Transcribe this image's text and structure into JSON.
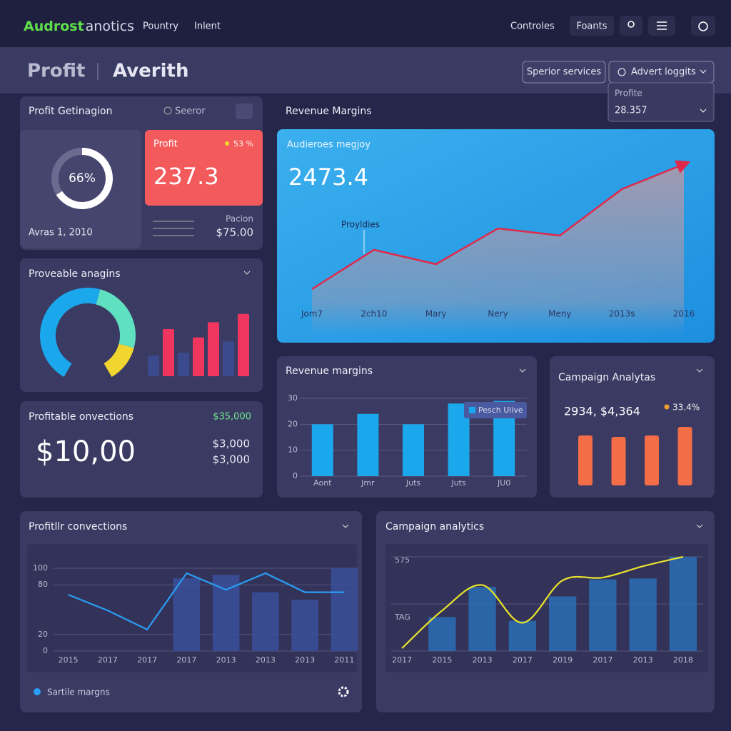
{
  "header": {
    "brand": "Audrost",
    "brand_suffix": "anotics",
    "nav": [
      "Pountry",
      "Inlent"
    ],
    "actions": [
      "Controles",
      "Foants"
    ]
  },
  "titlebar": {
    "title": "Profit",
    "subtitle": "Averith",
    "buttons": [
      "Sperior services",
      "Advert loggits"
    ],
    "dropdown": {
      "label": "Profite",
      "value": "28.357"
    }
  },
  "profit_panel": {
    "title": "Profit Getinagion",
    "search": "Seeror",
    "date": "Avras 1, 2010",
    "card": {
      "title": "Profit",
      "change": "53 %",
      "value": "237.3"
    },
    "footer": {
      "label": "Pacion",
      "value": "$75.00"
    }
  },
  "conversions_panel": {
    "title": "Profitable onvections",
    "badge": "$35,000",
    "value": "$10,00",
    "lines": [
      "$3,000",
      "$3,000"
    ]
  },
  "chart_data": [
    {
      "type": "donut",
      "values": [
        66
      ],
      "value_labels": [
        "66%"
      ],
      "color": "#ffffff"
    },
    {
      "type": "area",
      "title": "Revenue Margins",
      "subtitle": "Audieroes megjoy",
      "headline": "2473.4",
      "annotation": "Proyldies",
      "categories": [
        "Jom7",
        "2ch10",
        "Mary",
        "Nery",
        "Meny",
        "2013s",
        "2016"
      ],
      "values": [
        26,
        48,
        40,
        60,
        56,
        82,
        96
      ],
      "ylim": [
        0,
        100
      ],
      "color": "#e0294a"
    },
    {
      "type": "gauge",
      "title": "Proveable anagins",
      "values": [
        55,
        30,
        15
      ],
      "colors": [
        "#1aa7ec",
        "#5fe0c0",
        "#f2d630"
      ]
    },
    {
      "type": "bar",
      "values": [
        30,
        68,
        34,
        56,
        78,
        50,
        90
      ],
      "colors": [
        "#3b4a8c",
        "#f0365e",
        "#3b4a8c",
        "#f0365e",
        "#f0365e",
        "#3b4a8c",
        "#f0365e"
      ],
      "ylim": [
        0,
        100
      ]
    },
    {
      "type": "bar",
      "title": "Revenue margins",
      "categories": [
        "Aont",
        "Jmr",
        "Juts",
        "Juts",
        "JU0"
      ],
      "series": [
        {
          "name": "Pesch Ulive",
          "color": "#1aa7ec",
          "values": [
            20,
            24,
            20,
            28,
            29
          ]
        }
      ],
      "ylim": [
        0,
        30
      ],
      "yticks": [
        0,
        10,
        20,
        30
      ],
      "grid": true,
      "legend": "top-right"
    },
    {
      "type": "bar",
      "title": "Campaign Analytas",
      "headline": "2934, $4,364",
      "series": [
        {
          "name": "33.4%",
          "color": "#f36d47",
          "values": [
            70,
            68,
            70,
            82
          ]
        }
      ],
      "ylim": [
        0,
        100
      ],
      "legend": "top-right"
    },
    {
      "type": "combo",
      "title": "Profitllr convections",
      "categories": [
        "2015",
        "2017",
        "2017",
        "2017",
        "2013",
        "2013",
        "2013",
        "2011"
      ],
      "series": [
        {
          "name": "Sartile margns",
          "kind": "line",
          "color": "#2a9df4",
          "values": [
            68,
            49,
            26,
            94,
            74,
            94,
            71,
            71
          ]
        },
        {
          "kind": "bar",
          "color": "#3a4f9a",
          "values": [
            null,
            null,
            null,
            88,
            92,
            71,
            62,
            100
          ]
        }
      ],
      "ylim": [
        0,
        100
      ],
      "yticks": [
        0,
        20,
        80,
        100
      ],
      "grid": true,
      "legend": "bottom-left"
    },
    {
      "type": "combo",
      "title": "Campaign analytics",
      "y_labels": [
        "575",
        "TAG"
      ],
      "categories": [
        "2017",
        "2015",
        "2013",
        "2017",
        "2019",
        "2017",
        "2013",
        "2018"
      ],
      "series": [
        {
          "kind": "bar",
          "color": "#2c6fb5",
          "values": [
            null,
            36,
            68,
            32,
            58,
            76,
            77,
            100
          ]
        },
        {
          "kind": "line",
          "smooth": true,
          "color": "#e8e22a",
          "values": [
            3,
            43,
            70,
            30,
            75,
            78,
            90,
            100
          ]
        }
      ],
      "ylim": [
        0,
        100
      ],
      "grid": true
    }
  ]
}
